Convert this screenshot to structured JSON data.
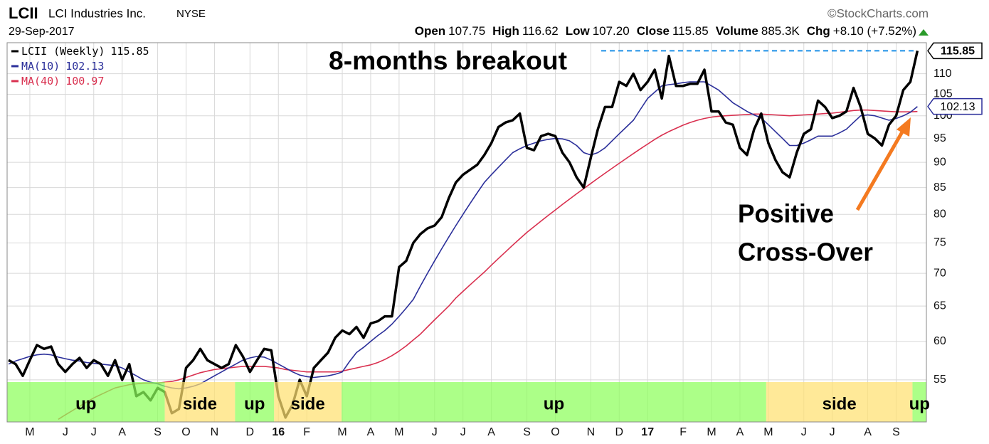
{
  "header": {
    "symbol": "LCII",
    "name": "LCI Industries Inc.",
    "exchange": "NYSE",
    "source": "©StockCharts.com",
    "date": "29-Sep-2017",
    "stats": [
      {
        "label": "Open",
        "value": "107.75"
      },
      {
        "label": "High",
        "value": "116.62"
      },
      {
        "label": "Low",
        "value": "107.20"
      },
      {
        "label": "Close",
        "value": "115.85"
      },
      {
        "label": "Volume",
        "value": "885.3K"
      },
      {
        "label": "Chg",
        "value": "+8.10 (+7.52%)"
      }
    ]
  },
  "chart_data": {
    "type": "line",
    "categories": [
      null,
      null,
      null,
      "M",
      null,
      null,
      null,
      null,
      "J",
      null,
      null,
      null,
      "J",
      null,
      null,
      null,
      "A",
      null,
      null,
      null,
      null,
      "S",
      null,
      null,
      null,
      "O",
      null,
      null,
      null,
      "N",
      null,
      null,
      null,
      null,
      "D",
      null,
      null,
      null,
      "16",
      null,
      null,
      null,
      "F",
      null,
      null,
      null,
      null,
      "M",
      null,
      null,
      null,
      "A",
      null,
      null,
      null,
      "M",
      null,
      null,
      null,
      null,
      "J",
      null,
      null,
      null,
      "J",
      null,
      null,
      null,
      "A",
      null,
      null,
      null,
      null,
      "S",
      null,
      null,
      null,
      "O",
      null,
      null,
      null,
      null,
      "N",
      null,
      null,
      null,
      "D",
      null,
      null,
      null,
      "17",
      null,
      null,
      null,
      null,
      "F",
      null,
      null,
      null,
      "M",
      null,
      null,
      null,
      "A",
      null,
      null,
      null,
      "M",
      null,
      null,
      null,
      null,
      "J",
      null,
      null,
      null,
      "J",
      null,
      null,
      null,
      null,
      "A",
      null,
      null,
      null,
      "S",
      null,
      null,
      null
    ],
    "series": [
      {
        "name": "LCII (Weekly)",
        "color": "#000000",
        "values": [
          57.5,
          57,
          55.5,
          57.5,
          59.5,
          59,
          59.3,
          57,
          56,
          57,
          57.8,
          56.5,
          57.5,
          57,
          55.5,
          57.5,
          55,
          57,
          53,
          53.5,
          52.5,
          54,
          53.5,
          51,
          51.5,
          56.5,
          57.5,
          59,
          57.5,
          57,
          56.5,
          57,
          59.5,
          58,
          56,
          57.5,
          59,
          58.8,
          53,
          50.5,
          52,
          55,
          53,
          56.5,
          57.5,
          58.5,
          60.5,
          61.5,
          61,
          62,
          60.5,
          62.5,
          62.8,
          63.5,
          63.5,
          71,
          72,
          75,
          76.5,
          77.5,
          78,
          79.5,
          83,
          86,
          87.5,
          88.5,
          89.5,
          91.5,
          94,
          97.5,
          98.5,
          99,
          100.5,
          93,
          92.5,
          95.5,
          96,
          95.5,
          92,
          90,
          87,
          85,
          91,
          97,
          102,
          102,
          108,
          107,
          110,
          106,
          108,
          111,
          104,
          114.5,
          107,
          107,
          107.5,
          107.5,
          111,
          101,
          101,
          98.5,
          98,
          93,
          91.5,
          97,
          100.5,
          94,
          90.5,
          88,
          87,
          92,
          96,
          97,
          103.5,
          102,
          99.5,
          100,
          101,
          106.5,
          102,
          96,
          95,
          93.5,
          98,
          100,
          106,
          108,
          115.85
        ]
      },
      {
        "name": "MA(10)",
        "color": "#2b2f9a",
        "values": [
          57,
          57.4,
          57.7,
          58,
          58.2,
          58.3,
          58.2,
          57.9,
          57.7,
          57.5,
          57.4,
          57.2,
          57.1,
          57,
          56.9,
          56.8,
          56.5,
          56,
          55.5,
          55,
          54.7,
          54.5,
          54.2,
          54,
          53.9,
          54,
          54.2,
          54.5,
          55,
          55.5,
          56,
          56.5,
          57,
          57.5,
          57.8,
          58,
          57.9,
          57.5,
          57,
          56.5,
          56,
          55.6,
          55.4,
          55.3,
          55.4,
          55.5,
          55.7,
          56,
          57.3,
          58.5,
          59.2,
          60,
          60.8,
          61.5,
          62.4,
          63.5,
          64.7,
          66,
          68,
          70,
          72,
          74,
          76,
          78,
          80,
          82,
          84,
          86,
          87.5,
          89,
          90.5,
          92,
          92.8,
          93.5,
          94,
          94.5,
          94.8,
          95,
          94.9,
          94.5,
          93.5,
          92,
          91.5,
          92,
          93,
          94.5,
          96,
          97.5,
          99,
          101.5,
          104,
          105.5,
          107,
          107.3,
          107.5,
          107.8,
          108,
          108,
          108,
          107,
          106,
          104.5,
          103,
          102,
          101,
          100.2,
          99.5,
          98,
          96.5,
          95,
          93.5,
          93.5,
          94,
          94.7,
          95.5,
          95.5,
          95.5,
          96.2,
          97,
          98.5,
          100,
          100.2,
          100,
          99.5,
          99,
          99.4,
          100,
          100.8,
          102.13
        ]
      },
      {
        "name": "MA(40)",
        "color": "#d9304f",
        "values": [
          null,
          null,
          null,
          null,
          null,
          null,
          null,
          50.3,
          50.8,
          51.3,
          51.8,
          52.3,
          52.8,
          53.2,
          53.6,
          54,
          54.2,
          54.4,
          54.5,
          54.6,
          54.6,
          54.6,
          54.7,
          54.8,
          55,
          55.3,
          55.6,
          55.9,
          56.1,
          56.3,
          56.4,
          56.5,
          56.6,
          56.7,
          56.7,
          56.7,
          56.7,
          56.6,
          56.5,
          56.3,
          56.2,
          56.1,
          56,
          56,
          56,
          56,
          56,
          56.1,
          56.3,
          56.5,
          56.7,
          56.9,
          57.2,
          57.6,
          58.1,
          58.7,
          59.4,
          60.2,
          61,
          62,
          63,
          64,
          65,
          66.2,
          67.2,
          68.2,
          69.2,
          70.2,
          71.3,
          72.4,
          73.5,
          74.6,
          75.7,
          76.8,
          77.8,
          78.8,
          79.8,
          80.8,
          81.8,
          82.8,
          83.8,
          84.8,
          85.8,
          86.8,
          87.8,
          88.8,
          89.8,
          90.8,
          91.8,
          92.8,
          93.8,
          94.8,
          95.7,
          96.5,
          97.2,
          97.9,
          98.5,
          99,
          99.4,
          99.7,
          99.9,
          100,
          100.1,
          100.2,
          100.3,
          100.4,
          100.4,
          100.3,
          100.2,
          100.1,
          100,
          100.1,
          100.2,
          100.3,
          100.4,
          100.5,
          100.6,
          100.8,
          101,
          101.2,
          101.3,
          101.3,
          101.2,
          101.1,
          101,
          100.9,
          100.9,
          100.9,
          100.97
        ]
      }
    ],
    "ylim": [
      50,
      118
    ],
    "yticks": [
      55,
      60,
      65,
      70,
      75,
      80,
      85,
      90,
      95,
      100,
      105,
      110
    ],
    "log_y": true,
    "grid": true,
    "legend": "top-left",
    "bands": [
      {
        "label": "up",
        "start": -0.2,
        "end": 22,
        "color": "#8cff5a",
        "text_color": "#2f8a1c"
      },
      {
        "label": "side",
        "start": 22,
        "end": 31.9,
        "color": "#ffe070",
        "text_color": "#a88000"
      },
      {
        "label": "up",
        "start": 31.9,
        "end": 37.4,
        "color": "#8cff5a",
        "text_color": "#2f8a1c"
      },
      {
        "label": "side",
        "start": 37.4,
        "end": 46.9,
        "color": "#ffe070",
        "text_color": "#a88000"
      },
      {
        "label": "up",
        "start": 46.9,
        "end": 106.7,
        "color": "#8cff5a",
        "text_color": "#2f8a1c"
      },
      {
        "label": "side",
        "start": 106.7,
        "end": 127.3,
        "color": "#ffe070",
        "text_color": "#a88000"
      },
      {
        "label": "up",
        "start": 127.3,
        "end": 129.3,
        "color": "#8cff5a",
        "text_color": "#2f8a1c"
      }
    ],
    "annotations": [
      {
        "text": "8-months breakout",
        "color": "#1e90e8"
      },
      {
        "text": "Positive",
        "color": "#f47a20"
      },
      {
        "text": "Cross-Over",
        "color": "#f47a20"
      }
    ]
  }
}
